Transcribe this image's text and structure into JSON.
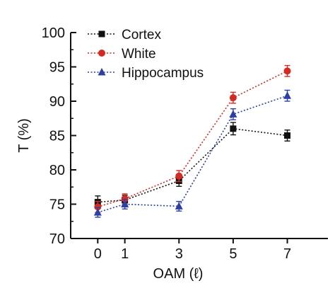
{
  "chart_data": {
    "type": "line",
    "title": "",
    "xlabel": "OAM (ℓ)",
    "ylabel": "T (%)",
    "xlim": [
      -1,
      8.5
    ],
    "ylim": [
      70,
      100
    ],
    "xticks": [
      0,
      1,
      3,
      5,
      7
    ],
    "yticks": [
      70,
      75,
      80,
      85,
      90,
      95,
      100
    ],
    "grid": false,
    "legend_position": "top-left",
    "x": [
      0,
      1,
      3,
      5,
      7
    ],
    "series": [
      {
        "name": "Cortex",
        "color": "#111111",
        "marker": "square",
        "values": [
          75.3,
          75.6,
          78.4,
          86.0,
          85.0
        ],
        "errors": [
          0.9,
          0.7,
          0.8,
          0.9,
          0.8
        ]
      },
      {
        "name": "White",
        "color": "#d42a24",
        "marker": "circle",
        "values": [
          74.6,
          75.8,
          79.1,
          90.5,
          94.4
        ],
        "errors": [
          0.8,
          0.7,
          0.8,
          0.8,
          0.8
        ]
      },
      {
        "name": "Hippocampus",
        "color": "#2b3fa6",
        "marker": "triangle",
        "values": [
          73.8,
          75.0,
          74.7,
          88.1,
          90.8
        ],
        "errors": [
          0.7,
          0.7,
          0.7,
          0.8,
          0.8
        ]
      }
    ]
  }
}
